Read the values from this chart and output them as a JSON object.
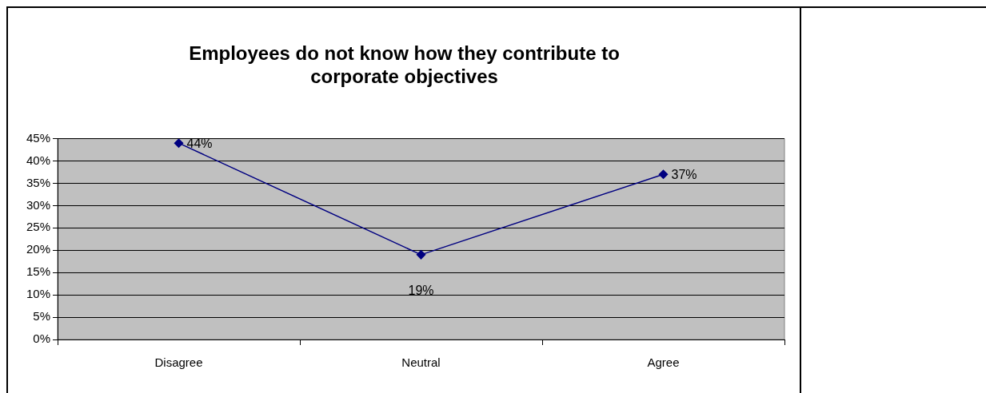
{
  "chart_data": {
    "type": "line",
    "title": "Employees do not know how they contribute to corporate objectives",
    "categories": [
      "Disagree",
      "Neutral",
      "Agree"
    ],
    "series": [
      {
        "color": "#000080",
        "values": [
          44,
          19,
          37
        ]
      }
    ],
    "value_labels": [
      "44%",
      "19%",
      "37%"
    ],
    "ylim": [
      0,
      45
    ],
    "yticks": [
      {
        "value": 0,
        "label": "0%"
      },
      {
        "value": 5,
        "label": "5%"
      },
      {
        "value": 10,
        "label": "10%"
      },
      {
        "value": 15,
        "label": "15%"
      },
      {
        "value": 20,
        "label": "20%"
      },
      {
        "value": 25,
        "label": "25%"
      },
      {
        "value": 30,
        "label": "30%"
      },
      {
        "value": 35,
        "label": "35%"
      },
      {
        "value": 40,
        "label": "40%"
      },
      {
        "value": 45,
        "label": "45%"
      }
    ],
    "grid": "y",
    "legend": false,
    "marker": "diamond",
    "line_style": "solid"
  }
}
